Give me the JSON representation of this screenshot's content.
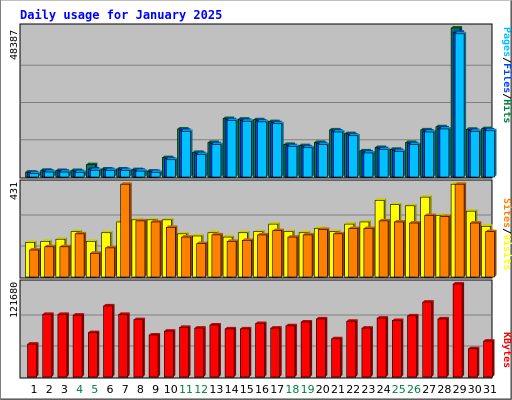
{
  "title": "Daily usage for January 2025",
  "colors": {
    "frame": "#000000",
    "title": "#0000ff",
    "plot_bg": "#c0c0c0",
    "gridline": "#808080",
    "hits": "#008040",
    "files": "#0040ff",
    "pages": "#00c0ff",
    "visits": "#ffff00",
    "sites": "#ff8000",
    "kbytes": "#ff0000",
    "weekend_label": "#008040",
    "weekday_label": "#000000"
  },
  "panel_labels": {
    "top": {
      "max_label": "48387",
      "legend": [
        {
          "text": "Pages",
          "color_key": "pages"
        },
        {
          "text": "/",
          "color_key": "frame"
        },
        {
          "text": "Files",
          "color_key": "files"
        },
        {
          "text": "/",
          "color_key": "frame"
        },
        {
          "text": "Hits",
          "color_key": "hits"
        }
      ]
    },
    "middle": {
      "max_label": "431",
      "legend": [
        {
          "text": "Sites",
          "color_key": "sites"
        },
        {
          "text": "/",
          "color_key": "frame"
        },
        {
          "text": "Visits",
          "color_key": "visits"
        }
      ]
    },
    "bottom": {
      "max_label": "121680",
      "legend": [
        {
          "text": "KBytes",
          "color_key": "kbytes"
        }
      ]
    }
  },
  "chart_data": [
    {
      "type": "bar",
      "panel": "top",
      "categories": [
        "1",
        "2",
        "3",
        "4",
        "5",
        "6",
        "7",
        "8",
        "9",
        "10",
        "11",
        "12",
        "13",
        "14",
        "15",
        "16",
        "17",
        "18",
        "19",
        "20",
        "21",
        "22",
        "23",
        "24",
        "25",
        "26",
        "27",
        "28",
        "29",
        "30",
        "31"
      ],
      "weekend_days": [
        "4",
        "5",
        "11",
        "12",
        "18",
        "19",
        "25",
        "26"
      ],
      "ylim": [
        0,
        48387
      ],
      "series": [
        {
          "name": "Hits",
          "color_key": "hits",
          "values": [
            1600,
            2200,
            2100,
            2100,
            4000,
            2600,
            2600,
            2400,
            1900,
            6300,
            15600,
            8000,
            11200,
            19000,
            18800,
            18600,
            18000,
            10600,
            10200,
            11200,
            15300,
            14100,
            8500,
            9600,
            9000,
            11200,
            15300,
            16300,
            48387,
            15500,
            15700
          ]
        },
        {
          "name": "Files",
          "color_key": "files",
          "values": [
            1400,
            1900,
            1900,
            1800,
            2600,
            2400,
            2400,
            2200,
            1800,
            5900,
            15200,
            7600,
            10800,
            18600,
            18400,
            18200,
            17600,
            10200,
            9800,
            10800,
            14900,
            13700,
            8100,
            9200,
            8600,
            10800,
            14900,
            15900,
            47000,
            15100,
            15300
          ]
        },
        {
          "name": "Pages",
          "color_key": "pages",
          "values": [
            1100,
            1600,
            1600,
            1500,
            2200,
            2100,
            2100,
            1900,
            1500,
            5600,
            14800,
            7300,
            10500,
            18300,
            18100,
            17900,
            17300,
            9900,
            9500,
            10500,
            14600,
            13400,
            7800,
            8900,
            8300,
            10500,
            14600,
            15600,
            46500,
            14800,
            15000
          ]
        }
      ]
    },
    {
      "type": "bar",
      "panel": "middle",
      "categories": [
        "1",
        "2",
        "3",
        "4",
        "5",
        "6",
        "7",
        "8",
        "9",
        "10",
        "11",
        "12",
        "13",
        "14",
        "15",
        "16",
        "17",
        "18",
        "19",
        "20",
        "21",
        "22",
        "23",
        "24",
        "25",
        "26",
        "27",
        "28",
        "29",
        "30",
        "31"
      ],
      "ylim": [
        0,
        431
      ],
      "series": [
        {
          "name": "Visits",
          "color_key": "visits",
          "values": [
            160,
            165,
            175,
            210,
            165,
            205,
            255,
            265,
            265,
            265,
            200,
            190,
            205,
            185,
            205,
            210,
            245,
            210,
            205,
            225,
            210,
            245,
            255,
            355,
            335,
            330,
            370,
            285,
            430,
            305,
            235
          ]
        },
        {
          "name": "Sites",
          "color_key": "sites",
          "values": [
            125,
            140,
            140,
            200,
            110,
            135,
            430,
            260,
            255,
            230,
            185,
            155,
            195,
            165,
            170,
            195,
            215,
            185,
            195,
            220,
            200,
            225,
            225,
            260,
            255,
            250,
            285,
            280,
            430,
            250,
            210
          ]
        }
      ]
    },
    {
      "type": "bar",
      "panel": "bottom",
      "categories": [
        "1",
        "2",
        "3",
        "4",
        "5",
        "6",
        "7",
        "8",
        "9",
        "10",
        "11",
        "12",
        "13",
        "14",
        "15",
        "16",
        "17",
        "18",
        "19",
        "20",
        "21",
        "22",
        "23",
        "24",
        "25",
        "26",
        "27",
        "28",
        "29",
        "30",
        "31"
      ],
      "ylim": [
        0,
        121680
      ],
      "series": [
        {
          "name": "KBytes",
          "color_key": "kbytes",
          "values": [
            43000,
            82000,
            82000,
            81000,
            58000,
            93000,
            82000,
            75000,
            55000,
            60000,
            65000,
            64000,
            68000,
            63000,
            63000,
            70000,
            64000,
            67000,
            72000,
            76000,
            50000,
            73000,
            64000,
            77000,
            74000,
            80000,
            98000,
            76000,
            121680,
            37000,
            47000
          ]
        }
      ]
    }
  ]
}
